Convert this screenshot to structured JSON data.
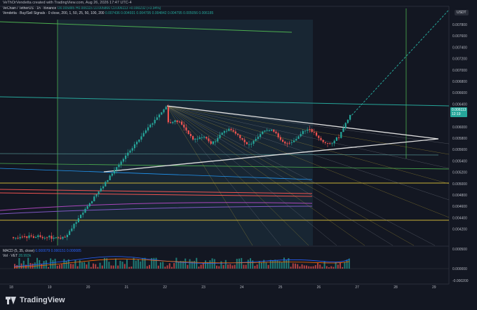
{
  "header": {
    "created_by": "VeThOrVendetta created with TradingView.com, Aug 26, 2026 17:47 UTC-4"
  },
  "legend": {
    "symbol_line": "VeChain / TetherUS · 1h · Binance",
    "ohlc": "O0.005885 H0.006115 L0.005866 C0.006113 +0.000232 (+3.94%)",
    "indicator_line": "Vendetta · Buy/Sell Signals · 0 close, 200, 1, 50, 25, 50, 100, 200",
    "indicator_values": "0.007436  0.004931  0.004795  0.004842  0.004795  0.005056  0.006185"
  },
  "sub_legend": {
    "macd": "MACD (5, 35, close)",
    "macd_values": "0.000079  0.000151  0.000085",
    "vol": "Vol · VET",
    "vol_value": "28.993k"
  },
  "price_axis": {
    "currency": "USDT",
    "ticks": [
      "0.007800",
      "0.007600",
      "0.007400",
      "0.007200",
      "0.007000",
      "0.006800",
      "0.006600",
      "0.006400",
      "0.006200",
      "0.006000",
      "0.005800",
      "0.005600",
      "0.005400",
      "0.005200",
      "0.005000",
      "0.004800",
      "0.004600",
      "0.004400",
      "0.004200"
    ],
    "current_price": "0.006113",
    "countdown": "12:19"
  },
  "sub_axis": {
    "ticks": [
      "0.000500",
      "0.000000",
      "-0.000200"
    ]
  },
  "time_axis": {
    "ticks": [
      "18",
      "19",
      "20",
      "21",
      "22",
      "23",
      "24",
      "25",
      "26",
      "27",
      "28",
      "29"
    ]
  },
  "footer": {
    "brand": "TradingView"
  },
  "colors": {
    "background": "#131722",
    "up": "#26a69a",
    "down": "#ef5350",
    "zone": "#1e3a4a",
    "green_line": "#4caf50",
    "yellow_line": "#c9b037",
    "red_line": "#ef5350",
    "purple_line": "#ab47bc",
    "white_line": "#e0e0e0"
  }
}
